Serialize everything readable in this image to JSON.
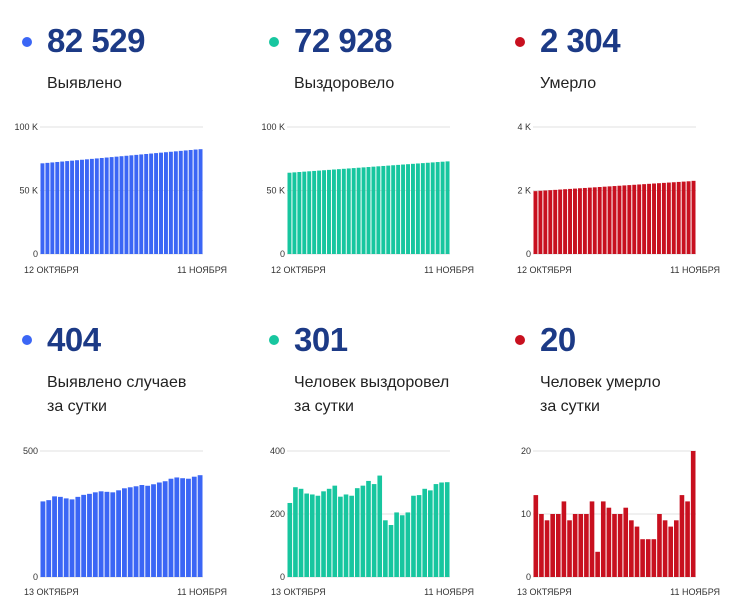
{
  "panels": [
    {
      "value": "82 529",
      "label_lines": [
        "Выявлено"
      ],
      "color": "#3b66f5",
      "chart_data": {
        "type": "bar",
        "x_start_label": "12 ОКТЯБРЯ",
        "x_end_label": "11 НОЯБРЯ",
        "yticks": [
          0,
          50000,
          100000
        ],
        "ytick_labels": [
          "0",
          "50 K",
          "100 K"
        ],
        "ylim": [
          0,
          100000
        ],
        "values": [
          71400,
          71750,
          72100,
          72450,
          72800,
          73150,
          73500,
          73850,
          74200,
          74550,
          74900,
          75250,
          75600,
          75950,
          76300,
          76650,
          77000,
          77350,
          77700,
          78050,
          78400,
          78750,
          79100,
          79450,
          79800,
          80150,
          80500,
          80850,
          81200,
          81550,
          81900,
          82250,
          82529
        ]
      }
    },
    {
      "value": "72 928",
      "label_lines": [
        "Выздоровело"
      ],
      "color": "#17c69f",
      "chart_data": {
        "type": "bar",
        "x_start_label": "12 ОКТЯБРЯ",
        "x_end_label": "11 НОЯБРЯ",
        "yticks": [
          0,
          50000,
          100000
        ],
        "ytick_labels": [
          "0",
          "50 K",
          "100 K"
        ],
        "ylim": [
          0,
          100000
        ],
        "values": [
          64000,
          64280,
          64560,
          64840,
          65120,
          65400,
          65680,
          65960,
          66240,
          66520,
          66800,
          67080,
          67360,
          67640,
          67920,
          68200,
          68480,
          68760,
          69040,
          69320,
          69600,
          69880,
          70160,
          70440,
          70720,
          71000,
          71280,
          71560,
          71840,
          72120,
          72400,
          72670,
          72928
        ]
      }
    },
    {
      "value": "2 304",
      "label_lines": [
        "Умерло"
      ],
      "color": "#c8101f",
      "chart_data": {
        "type": "bar",
        "x_start_label": "12 ОКТЯБРЯ",
        "x_end_label": "11 НОЯБРЯ",
        "yticks": [
          0,
          2000,
          4000
        ],
        "ytick_labels": [
          "0",
          "2 K",
          "4 K"
        ],
        "ylim": [
          0,
          4000
        ],
        "values": [
          1980,
          1990,
          2000,
          2010,
          2020,
          2030,
          2040,
          2050,
          2060,
          2070,
          2080,
          2090,
          2100,
          2110,
          2120,
          2130,
          2140,
          2150,
          2160,
          2170,
          2180,
          2190,
          2200,
          2210,
          2220,
          2230,
          2240,
          2250,
          2260,
          2270,
          2280,
          2290,
          2304
        ]
      }
    },
    {
      "value": "404",
      "label_lines": [
        "Выявлено случаев",
        "за сутки"
      ],
      "color": "#3b66f5",
      "chart_data": {
        "type": "bar",
        "x_start_label": "13 ОКТЯБРЯ",
        "x_end_label": "11 НОЯБРЯ",
        "yticks": [
          0,
          500
        ],
        "ytick_labels": [
          "0",
          "500"
        ],
        "ylim": [
          0,
          500
        ],
        "values": [
          300,
          305,
          320,
          318,
          312,
          308,
          318,
          326,
          330,
          336,
          340,
          338,
          336,
          344,
          352,
          356,
          360,
          365,
          362,
          368,
          375,
          380,
          390,
          395,
          392,
          390,
          398,
          404
        ]
      }
    },
    {
      "value": "301",
      "label_lines": [
        "Человек выздоровел",
        "за сутки"
      ],
      "color": "#17c69f",
      "chart_data": {
        "type": "bar",
        "x_start_label": "13 ОКТЯБРЯ",
        "x_end_label": "11 НОЯБРЯ",
        "yticks": [
          0,
          200,
          400
        ],
        "ytick_labels": [
          "0",
          "200",
          "400"
        ],
        "ylim": [
          0,
          400
        ],
        "values": [
          235,
          285,
          280,
          265,
          262,
          258,
          272,
          280,
          290,
          255,
          262,
          258,
          282,
          290,
          305,
          295,
          322,
          180,
          165,
          205,
          196,
          205,
          258,
          260,
          280,
          275,
          295,
          300,
          301
        ]
      }
    },
    {
      "value": "20",
      "label_lines": [
        "Человек умерло",
        "за сутки"
      ],
      "color": "#c8101f",
      "chart_data": {
        "type": "bar",
        "x_start_label": "13 ОКТЯБРЯ",
        "x_end_label": "11 НОЯБРЯ",
        "yticks": [
          0,
          10,
          20
        ],
        "ytick_labels": [
          "0",
          "10",
          "20"
        ],
        "ylim": [
          0,
          20
        ],
        "values": [
          13,
          10,
          9,
          10,
          10,
          12,
          9,
          10,
          10,
          10,
          12,
          4,
          12,
          11,
          10,
          10,
          11,
          9,
          8,
          6,
          6,
          6,
          10,
          9,
          8,
          9,
          13,
          12,
          20
        ]
      }
    }
  ]
}
